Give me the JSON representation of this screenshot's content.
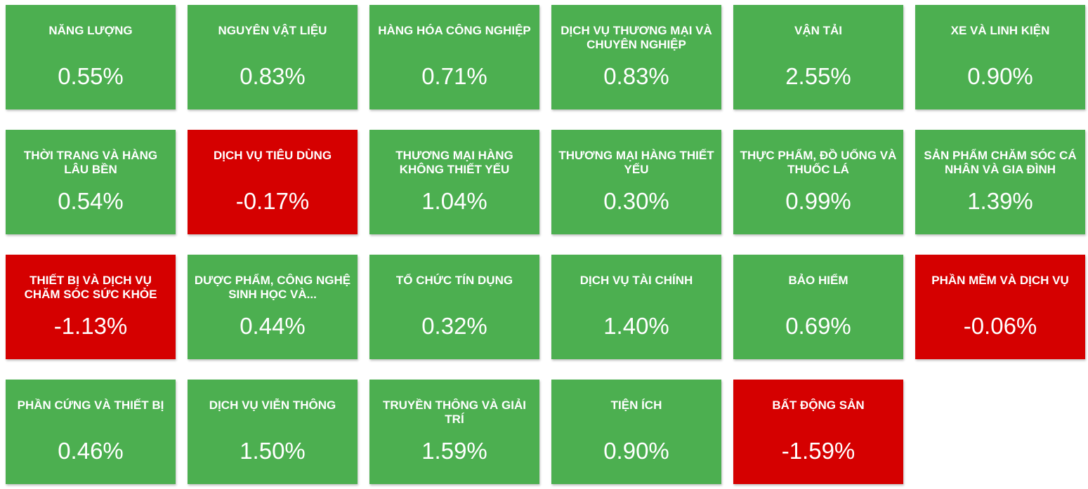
{
  "colors": {
    "positive": "#4caf50",
    "negative": "#d50000",
    "text": "#ffffff"
  },
  "sectors": [
    {
      "name": "NĂNG LƯỢNG",
      "change": "0.55%",
      "direction": "up"
    },
    {
      "name": "NGUYÊN VẬT LIỆU",
      "change": "0.83%",
      "direction": "up"
    },
    {
      "name": "HÀNG HÓA CÔNG NGHIỆP",
      "change": "0.71%",
      "direction": "up"
    },
    {
      "name": "DỊCH VỤ THƯƠNG MẠI VÀ CHUYÊN NGHIỆP",
      "change": "0.83%",
      "direction": "up"
    },
    {
      "name": "VẬN TẢI",
      "change": "2.55%",
      "direction": "up"
    },
    {
      "name": "XE VÀ LINH KIỆN",
      "change": "0.90%",
      "direction": "up"
    },
    {
      "name": "THỜI TRANG VÀ HÀNG LÂU BỀN",
      "change": "0.54%",
      "direction": "up"
    },
    {
      "name": "DỊCH VỤ TIÊU DÙNG",
      "change": "-0.17%",
      "direction": "down"
    },
    {
      "name": "THƯƠNG MẠI HÀNG KHÔNG THIẾT YẾU",
      "change": "1.04%",
      "direction": "up"
    },
    {
      "name": "THƯƠNG MẠI HÀNG THIẾT YẾU",
      "change": "0.30%",
      "direction": "up"
    },
    {
      "name": "THỰC PHẨM, ĐỒ UỐNG VÀ THUỐC LÁ",
      "change": "0.99%",
      "direction": "up"
    },
    {
      "name": "SẢN PHẨM CHĂM SÓC CÁ NHÂN VÀ GIA ĐÌNH",
      "change": "1.39%",
      "direction": "up"
    },
    {
      "name": "THIẾT BỊ VÀ DỊCH VỤ CHĂM SÓC SỨC KHỎE",
      "change": "-1.13%",
      "direction": "down"
    },
    {
      "name": "DƯỢC PHẨM, CÔNG NGHỆ SINH HỌC VÀ...",
      "change": "0.44%",
      "direction": "up"
    },
    {
      "name": "TỔ CHỨC TÍN DỤNG",
      "change": "0.32%",
      "direction": "up"
    },
    {
      "name": "DỊCH VỤ TÀI CHÍNH",
      "change": "1.40%",
      "direction": "up"
    },
    {
      "name": "BẢO HIỂM",
      "change": "0.69%",
      "direction": "up"
    },
    {
      "name": "PHẦN MỀM VÀ DỊCH VỤ",
      "change": "-0.06%",
      "direction": "down"
    },
    {
      "name": "PHẦN CỨNG VÀ THIẾT BỊ",
      "change": "0.46%",
      "direction": "up"
    },
    {
      "name": "DỊCH VỤ VIỄN THÔNG",
      "change": "1.50%",
      "direction": "up"
    },
    {
      "name": "TRUYỀN THÔNG VÀ GIẢI TRÍ",
      "change": "1.59%",
      "direction": "up"
    },
    {
      "name": "TIỆN ÍCH",
      "change": "0.90%",
      "direction": "up"
    },
    {
      "name": "BẤT ĐỘNG SẢN",
      "change": "-1.59%",
      "direction": "down"
    }
  ]
}
